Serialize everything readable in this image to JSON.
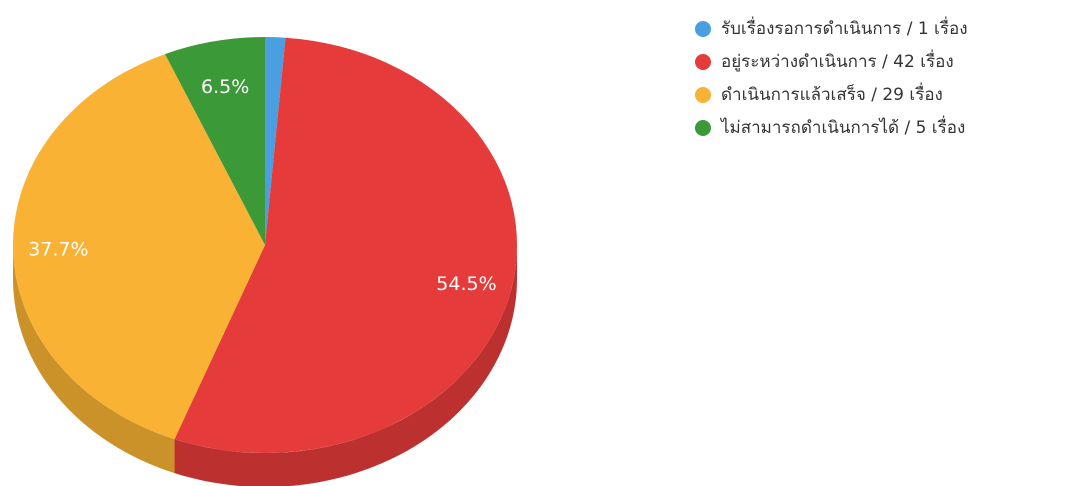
{
  "chart_data": {
    "type": "pie",
    "style": "3d",
    "categories": [
      "รับเรื่องรอการดำเนินการ / 1 เรื่อง",
      "อยู่ระหว่างดำเนินการ / 42 เรื่อง",
      "ดำเนินการแล้วเสร็จ / 29 เรื่อง",
      "ไม่สามารถดำเนินการได้ / 5 เรื่อง"
    ],
    "values": [
      1,
      42,
      29,
      5
    ],
    "slice_labels": [
      "",
      "54.5%",
      "37.7%",
      "6.5%"
    ],
    "colors": [
      "#4a9fe0",
      "#e53b3b",
      "#f9b233",
      "#3b9a37"
    ],
    "legend_position": "right"
  }
}
